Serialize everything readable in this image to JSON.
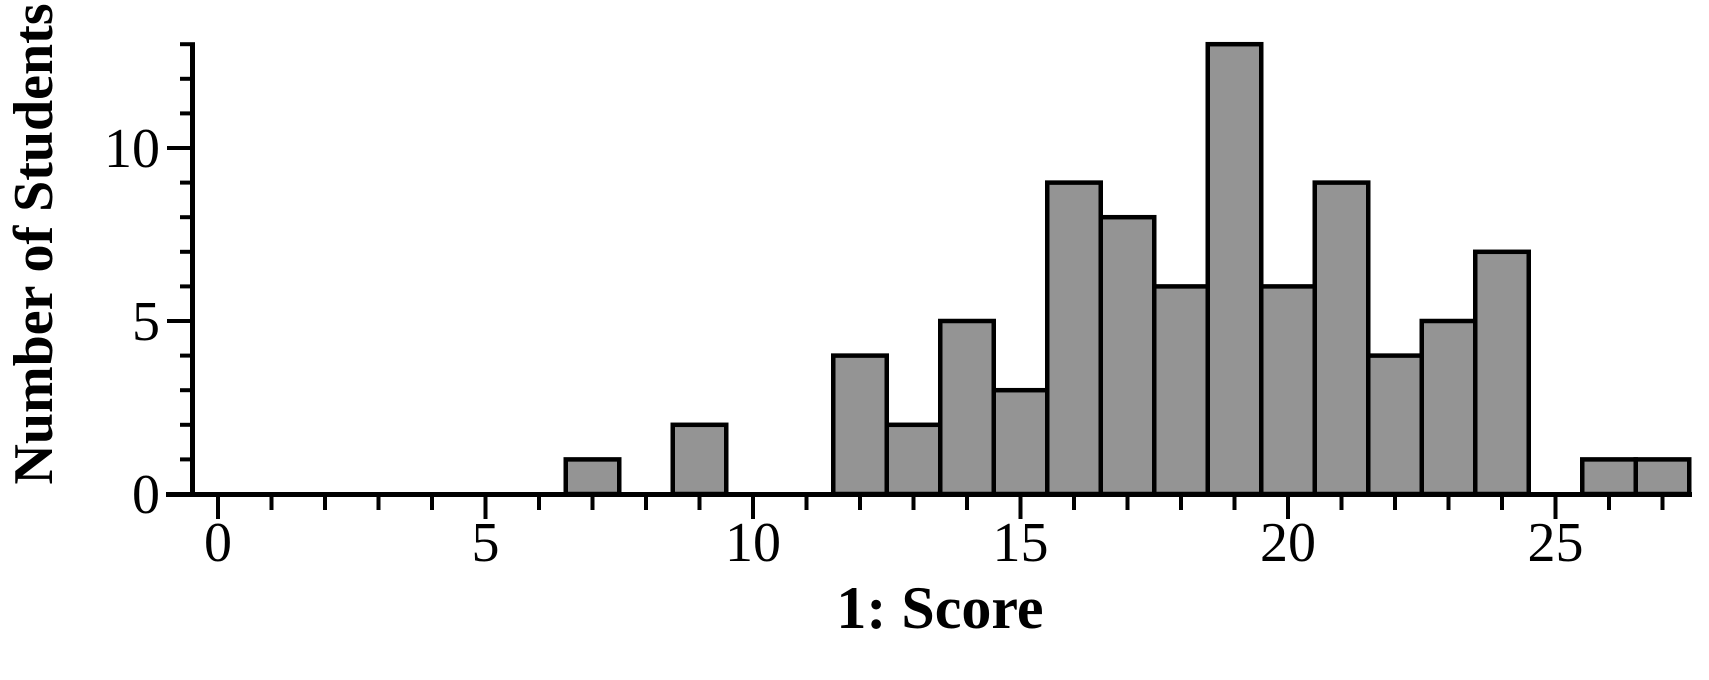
{
  "page": {
    "background": "#ffffff"
  },
  "chart_data": {
    "type": "bar",
    "subtype": "histogram",
    "title": "",
    "xlabel": "1: Score",
    "ylabel": "Number of Students",
    "bin_width": 1,
    "categories": [
      7,
      8,
      9,
      10,
      11,
      12,
      13,
      14,
      15,
      16,
      17,
      18,
      19,
      20,
      21,
      22,
      23,
      24,
      25,
      26,
      27
    ],
    "values": [
      1,
      0,
      2,
      0,
      0,
      4,
      2,
      5,
      3,
      9,
      8,
      6,
      13,
      6,
      9,
      4,
      5,
      7,
      0,
      1,
      1
    ],
    "xlim": [
      -0.5,
      27.5
    ],
    "ylim": [
      0,
      13
    ],
    "x_major_ticks": [
      0,
      5,
      10,
      15,
      20,
      25
    ],
    "x_major_tick_labels": [
      "0",
      "5",
      "10",
      "15",
      "20",
      "25"
    ],
    "y_major_ticks": [
      0,
      5,
      10
    ],
    "y_major_tick_labels": [
      "0",
      "5",
      "10"
    ],
    "x_minor_tick_step": 1,
    "y_minor_tick_step": 1,
    "grid": false,
    "legend": false,
    "bar_fill": "#949494",
    "bar_edge": "#000000",
    "axis_color": "#000000"
  }
}
